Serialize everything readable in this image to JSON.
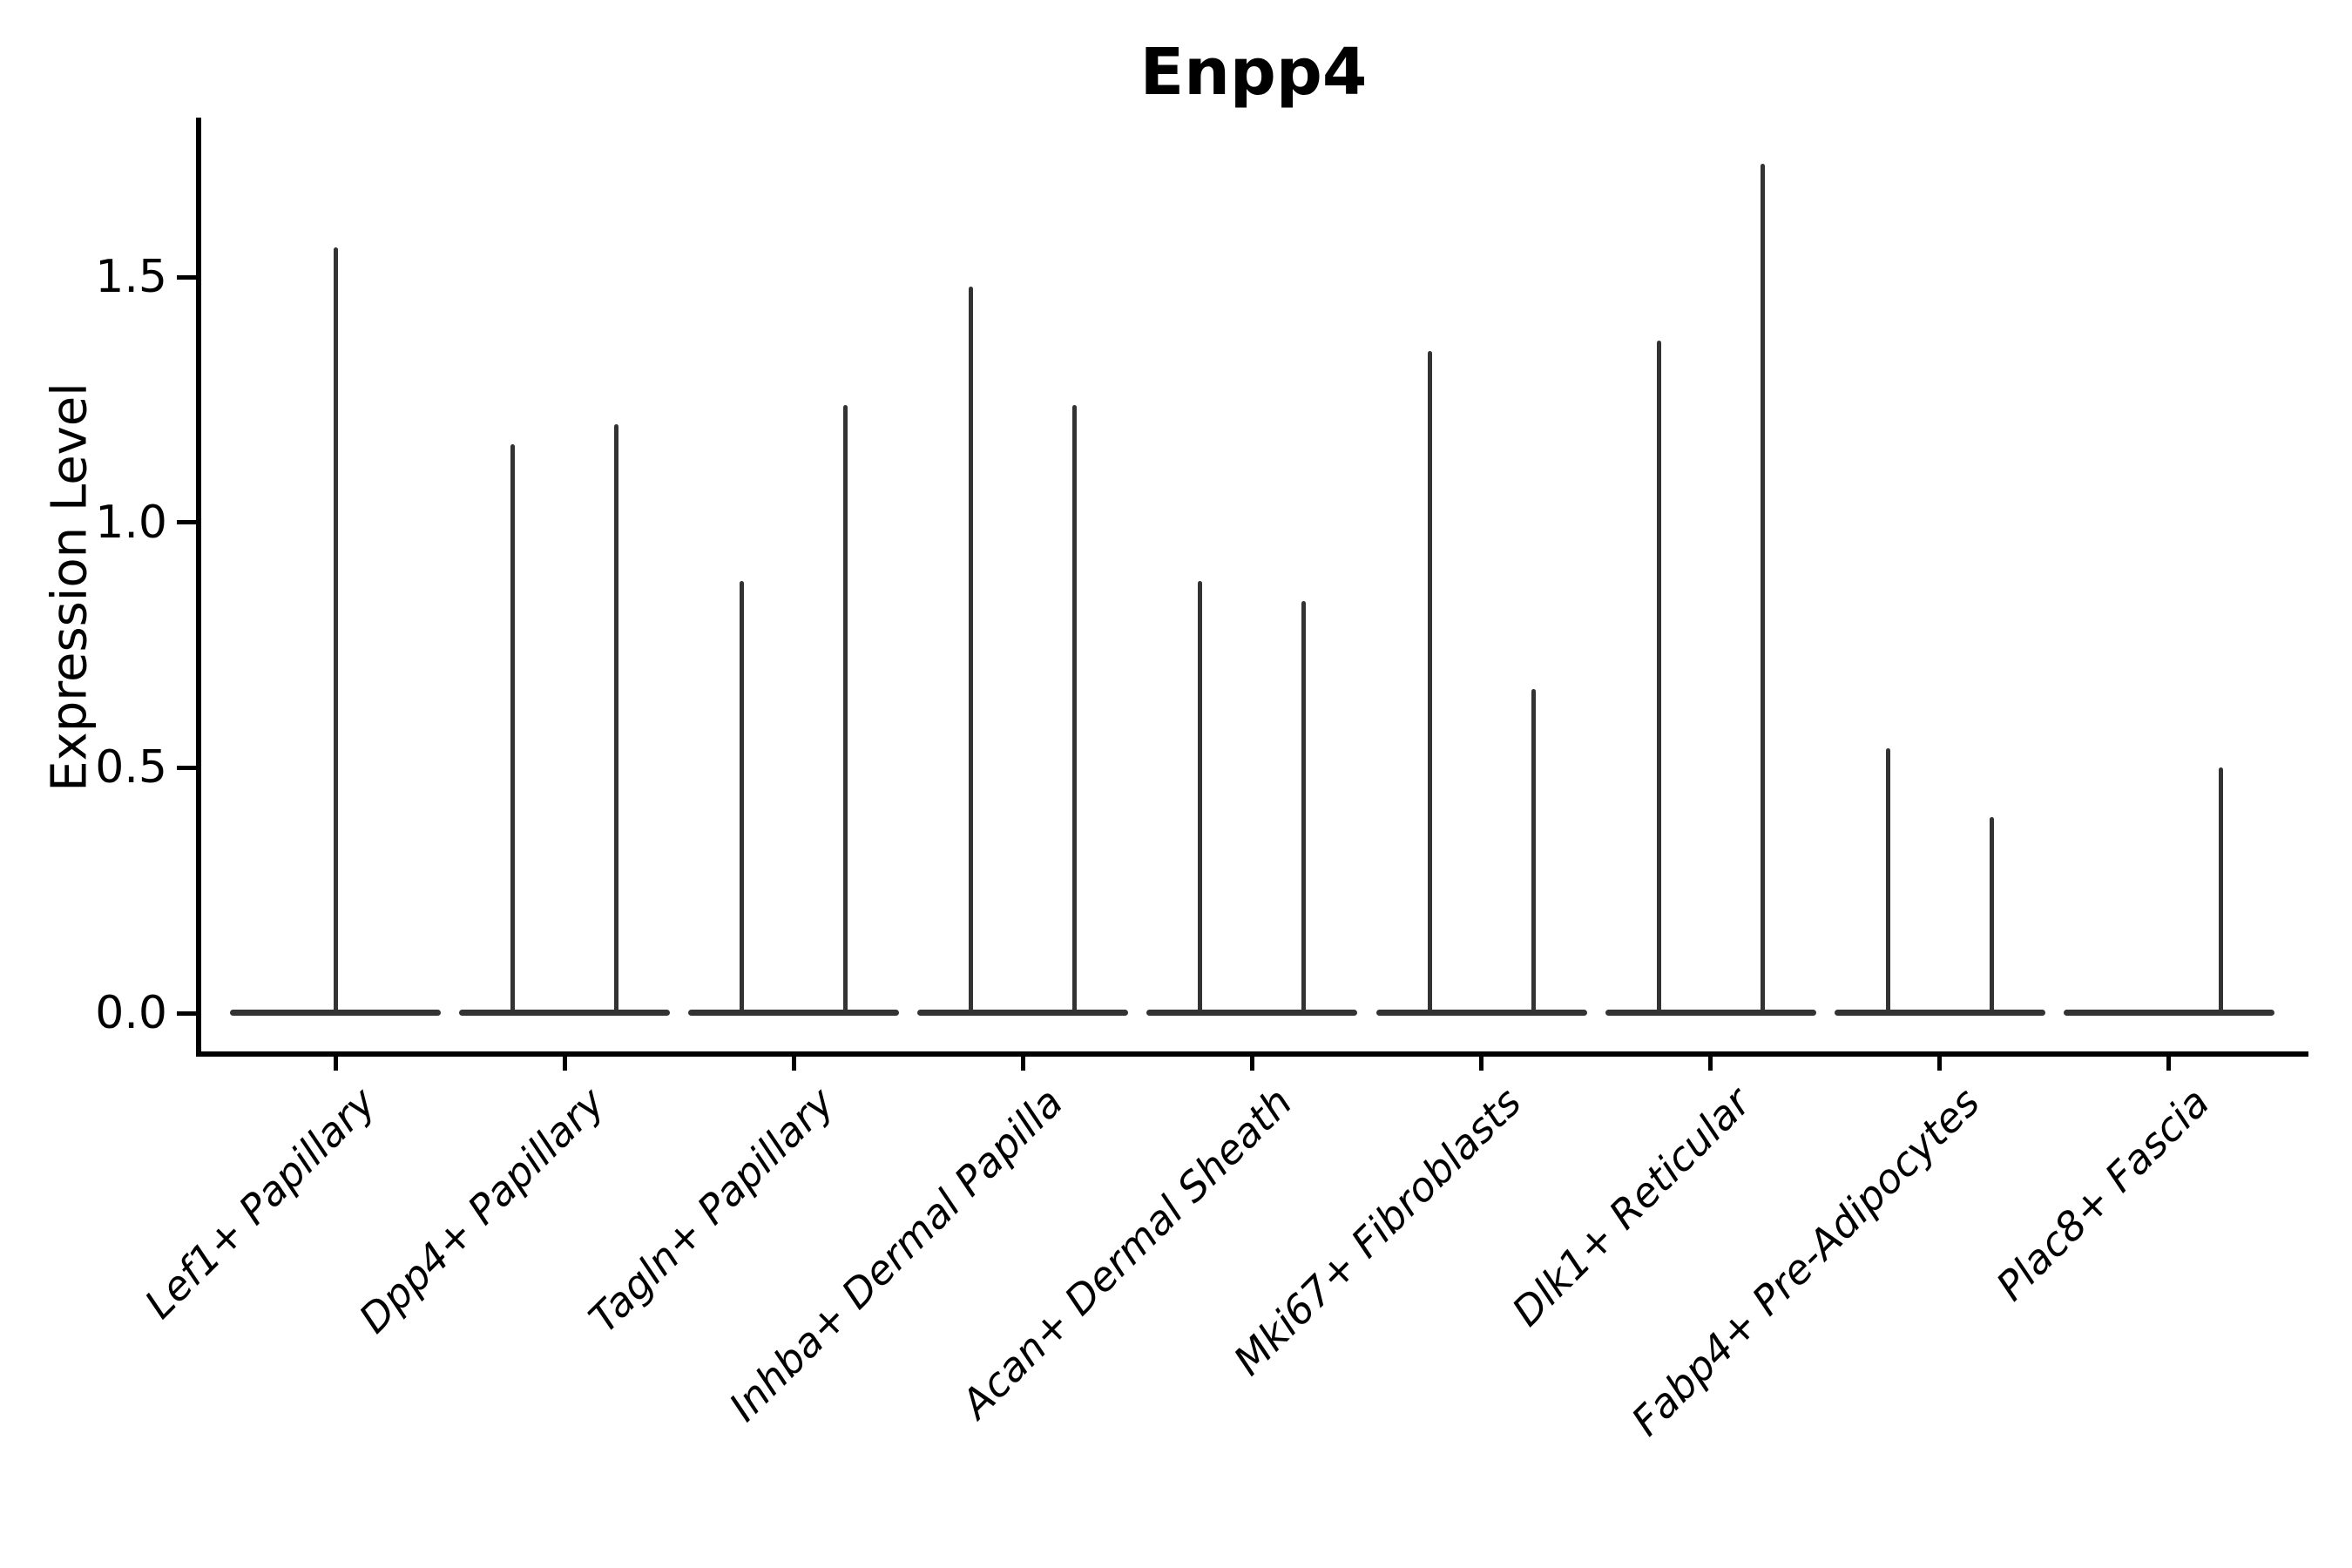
{
  "figure": {
    "background": "#ffffff",
    "text_color": "#000000",
    "violin_color": "#333333",
    "spine_color": "#000000"
  },
  "chart_data": {
    "type": "violin",
    "title": "Enpp4",
    "xlabel": "",
    "ylabel": "Expression Level",
    "yticks": [
      0.0,
      0.5,
      1.0,
      1.5
    ],
    "ylim": [
      -0.08,
      1.83
    ],
    "grid": false,
    "legend": "none",
    "categories": [
      "Lef1+ Papillary",
      "Dpp4+ Papillary",
      "Tagln+ Papillary",
      "Inhba+ Dermal Papilla",
      "Acan+ Dermal Sheath",
      "Mki67+ Fibroblasts",
      "Dlk1+ Reticular",
      "Fabp4+ Pre-Adipocytes",
      "Plac8+ Fascia"
    ],
    "violins": [
      {
        "category": "Lef1+ Papillary",
        "spikes": [
          {
            "pos": "center",
            "max": 1.56
          }
        ]
      },
      {
        "category": "Dpp4+ Papillary",
        "spikes": [
          {
            "pos": "left",
            "max": 1.16
          },
          {
            "pos": "right",
            "max": 1.2
          }
        ]
      },
      {
        "category": "Tagln+ Papillary",
        "spikes": [
          {
            "pos": "left",
            "max": 0.88
          },
          {
            "pos": "right",
            "max": 1.24
          }
        ]
      },
      {
        "category": "Inhba+ Dermal Papilla",
        "spikes": [
          {
            "pos": "left",
            "max": 1.48
          },
          {
            "pos": "right",
            "max": 1.24
          }
        ]
      },
      {
        "category": "Acan+ Dermal Sheath",
        "spikes": [
          {
            "pos": "left",
            "max": 0.88
          },
          {
            "pos": "right",
            "max": 0.84
          }
        ]
      },
      {
        "category": "Mki67+ Fibroblasts",
        "spikes": [
          {
            "pos": "left",
            "max": 1.35
          },
          {
            "pos": "right",
            "max": 0.66
          }
        ]
      },
      {
        "category": "Dlk1+ Reticular",
        "spikes": [
          {
            "pos": "left",
            "max": 1.37
          },
          {
            "pos": "right",
            "max": 1.73
          }
        ]
      },
      {
        "category": "Fabp4+ Pre-Adipocytes",
        "spikes": [
          {
            "pos": "left",
            "max": 0.54
          },
          {
            "pos": "right",
            "max": 0.4
          }
        ]
      },
      {
        "category": "Plac8+ Fascia",
        "spikes": [
          {
            "pos": "right",
            "max": 0.5
          }
        ]
      }
    ]
  }
}
